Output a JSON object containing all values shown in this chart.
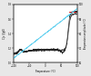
{
  "xlabel": "Temperature (°C)",
  "ylabel_left": "C'p (J/gK)",
  "ylabel_right": "Temperature amplitude (°C)",
  "xlim": [
    -100,
    100
  ],
  "ylim_left": [
    1.0,
    1.8
  ],
  "ylim_right": [
    60,
    100
  ],
  "xticks": [
    -100,
    -50,
    0,
    50,
    100
  ],
  "yticks_left": [
    1.0,
    1.2,
    1.4,
    1.6,
    1.8
  ],
  "yticks_right": [
    60,
    70,
    80,
    90,
    100
  ],
  "bg_color": "#e8e8e8",
  "plot_bg": "#ffffff",
  "line1_color": "#222222",
  "line2_color": "#444444",
  "line3_color": "#cc0000",
  "line4_color": "#55ccee"
}
